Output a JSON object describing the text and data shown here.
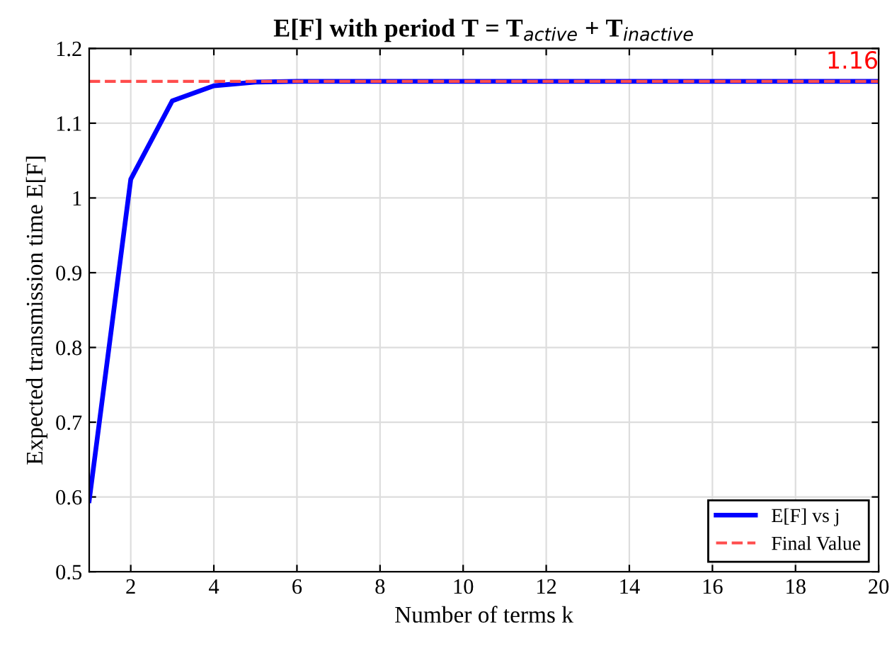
{
  "chart_data": {
    "type": "line",
    "title": "E[F] with period T = T$_{active}$ + T$_{inactive}$",
    "xlabel": "Number of terms k",
    "ylabel": "Expected transmission time E[F]",
    "x": [
      1,
      2,
      3,
      4,
      5,
      6,
      7,
      8,
      9,
      10,
      11,
      12,
      13,
      14,
      15,
      16,
      17,
      18,
      19,
      20
    ],
    "series": [
      {
        "name": "E[F] vs j",
        "color": "#0000ff",
        "line_style": "solid",
        "values": [
          0.595,
          1.025,
          1.13,
          1.15,
          1.155,
          1.156,
          1.156,
          1.156,
          1.156,
          1.156,
          1.156,
          1.156,
          1.156,
          1.156,
          1.156,
          1.156,
          1.156,
          1.156,
          1.156,
          1.156
        ]
      },
      {
        "name": "Final Value",
        "color": "#ff4d4d",
        "line_style": "dashed",
        "values": [
          1.156,
          1.156,
          1.156,
          1.156,
          1.156,
          1.156,
          1.156,
          1.156,
          1.156,
          1.156,
          1.156,
          1.156,
          1.156,
          1.156,
          1.156,
          1.156,
          1.156,
          1.156,
          1.156,
          1.156
        ]
      }
    ],
    "annotations": [
      {
        "text": "1.16",
        "x": 20,
        "y": 1.156
      }
    ],
    "xlim": [
      1,
      20
    ],
    "xticks": [
      2,
      4,
      6,
      8,
      10,
      12,
      14,
      16,
      18,
      20
    ],
    "ylim": [
      0.5,
      1.2
    ],
    "yticks": [
      0.5,
      0.6,
      0.7,
      0.8,
      0.9,
      1,
      1.1,
      1.2
    ],
    "grid": true,
    "legend": "bottom right",
    "marker": "none"
  }
}
